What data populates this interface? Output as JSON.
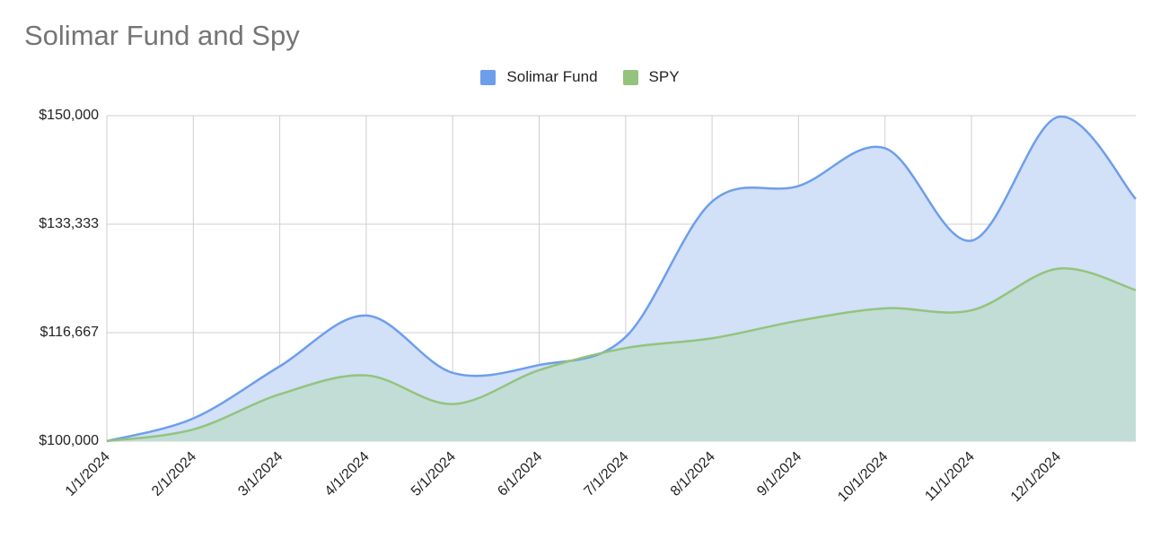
{
  "chart_data": {
    "type": "area",
    "title": "Solimar Fund and Spy",
    "xlabel": "",
    "ylabel": "",
    "x": [
      "1/1/2024",
      "2/1/2024",
      "3/1/2024",
      "4/1/2024",
      "5/1/2024",
      "6/1/2024",
      "7/1/2024",
      "8/1/2024",
      "9/1/2024",
      "10/1/2024",
      "11/1/2024",
      "12/1/2024"
    ],
    "x_tick_labels": [
      "1/1/2024",
      "2/1/2024",
      "3/1/2024",
      "4/1/2024",
      "5/1/2024",
      "6/1/2024",
      "7/1/2024",
      "8/1/2024",
      "9/1/2024",
      "10/1/2024",
      "11/1/2024",
      "12/1/2024"
    ],
    "y_tick_labels": [
      "$100,000",
      "$116,667",
      "$133,333",
      "$150,000"
    ],
    "y_ticks": [
      100000,
      116667,
      133333,
      150000
    ],
    "ylim": [
      100000,
      150000
    ],
    "grid": true,
    "legend_position": "top",
    "series": [
      {
        "name": "Solimar Fund",
        "color": "#6d9eeb",
        "fill": "#d2e0f8",
        "values": [
          100000,
          103500,
          111500,
          119300,
          110500,
          111700,
          116000,
          136800,
          139200,
          145000,
          130800,
          149800
        ],
        "end_value": 137200
      },
      {
        "name": "SPY",
        "color": "#93c47d",
        "fill": "#c2ddd5",
        "values": [
          100000,
          101800,
          107200,
          110100,
          105700,
          110900,
          114300,
          115800,
          118500,
          120400,
          120100,
          126500
        ],
        "end_value": 123200
      }
    ]
  }
}
